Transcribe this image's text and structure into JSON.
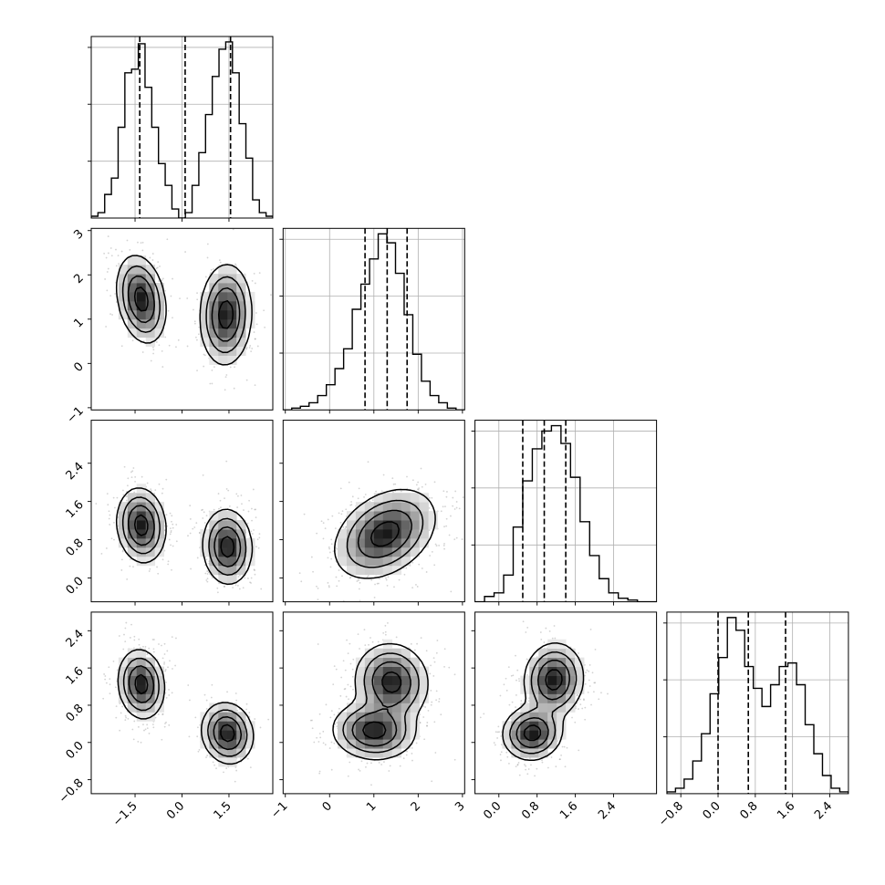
{
  "chart_data": {
    "type": "corner",
    "colors": {
      "line": "#000000",
      "grid": "#b0b0b0",
      "points": "#808080",
      "background": "#ffffff"
    },
    "params": [
      {
        "ticks": [
          -1.5,
          0.0,
          1.5
        ],
        "tick_labels": [
          "−1.5",
          "0.0",
          "1.5"
        ],
        "range": [
          -2.9,
          2.9
        ],
        "quantiles": [
          -1.35,
          0.1,
          1.55
        ],
        "label_rotation": -45
      },
      {
        "ticks": [
          -1,
          0,
          1,
          2,
          3
        ],
        "tick_labels": [
          "−1",
          "0",
          "1",
          "2",
          "3"
        ],
        "range": [
          -1.05,
          3.05
        ],
        "quantiles": [
          0.8,
          1.3,
          1.75
        ],
        "label_rotation": -45
      },
      {
        "ticks": [
          0.0,
          0.8,
          1.6,
          2.4
        ],
        "tick_labels": [
          "0.0",
          "0.8",
          "1.6",
          "2.4"
        ],
        "range": [
          -0.5,
          3.3
        ],
        "quantiles": [
          0.5,
          0.95,
          1.4
        ],
        "label_rotation": -45
      },
      {
        "ticks": [
          -0.8,
          0.0,
          0.8,
          1.6,
          2.4
        ],
        "tick_labels": [
          "−0.8",
          "0.0",
          "0.8",
          "1.6",
          "2.4"
        ],
        "range": [
          -1.1,
          2.8
        ],
        "quantiles": [
          0.0,
          0.65,
          1.45
        ],
        "label_rotation": -45
      }
    ],
    "histograms": [
      {
        "param": 0,
        "bins": [
          -2.9,
          2.9
        ],
        "counts": [
          0.01,
          0.03,
          0.13,
          0.22,
          0.5,
          0.8,
          0.82,
          0.96,
          0.72,
          0.5,
          0.3,
          0.18,
          0.05,
          0.0,
          0.03,
          0.18,
          0.36,
          0.57,
          0.78,
          0.93,
          0.97,
          0.8,
          0.52,
          0.33,
          0.1,
          0.03,
          0.01
        ]
      },
      {
        "param": 1,
        "bins": [
          -1.05,
          3.05
        ],
        "counts": [
          0.0,
          0.01,
          0.02,
          0.04,
          0.08,
          0.14,
          0.23,
          0.34,
          0.56,
          0.7,
          0.84,
          0.98,
          0.93,
          0.76,
          0.53,
          0.31,
          0.16,
          0.08,
          0.04,
          0.01,
          0.0
        ]
      },
      {
        "param": 2,
        "bins": [
          -0.5,
          3.3
        ],
        "counts": [
          0.0,
          0.03,
          0.05,
          0.15,
          0.42,
          0.68,
          0.86,
          0.96,
          0.99,
          0.89,
          0.7,
          0.45,
          0.26,
          0.13,
          0.05,
          0.02,
          0.01,
          0.0,
          0.0
        ]
      },
      {
        "param": 3,
        "bins": [
          -1.1,
          2.8
        ],
        "counts": [
          0.01,
          0.03,
          0.08,
          0.18,
          0.33,
          0.55,
          0.75,
          0.97,
          0.9,
          0.7,
          0.58,
          0.48,
          0.6,
          0.7,
          0.72,
          0.6,
          0.38,
          0.22,
          0.1,
          0.03,
          0.01
        ]
      }
    ],
    "pairs": [
      {
        "x_param": 0,
        "y_param": 1,
        "modes": [
          {
            "x": -1.3,
            "y": 1.45,
            "sx": 0.38,
            "sy": 0.48,
            "rho": -0.25,
            "weight": 0.5
          },
          {
            "x": 1.4,
            "y": 1.1,
            "sx": 0.4,
            "sy": 0.55,
            "rho": 0.05,
            "weight": 0.5
          }
        ]
      },
      {
        "x_param": 0,
        "y_param": 2,
        "modes": [
          {
            "x": -1.3,
            "y": 1.1,
            "sx": 0.38,
            "sy": 0.38,
            "rho": -0.1,
            "weight": 0.5
          },
          {
            "x": 1.45,
            "y": 0.65,
            "sx": 0.38,
            "sy": 0.38,
            "rho": -0.05,
            "weight": 0.5
          }
        ]
      },
      {
        "x_param": 0,
        "y_param": 3,
        "modes": [
          {
            "x": -1.3,
            "y": 1.25,
            "sx": 0.36,
            "sy": 0.36,
            "rho": -0.1,
            "weight": 0.5
          },
          {
            "x": 1.45,
            "y": 0.2,
            "sx": 0.4,
            "sy": 0.32,
            "rho": -0.1,
            "weight": 0.5
          }
        ]
      },
      {
        "x_param": 1,
        "y_param": 2,
        "modes": [
          {
            "x": 1.25,
            "y": 0.92,
            "sx": 0.55,
            "sy": 0.45,
            "rho": 0.35,
            "weight": 1.0
          }
        ]
      },
      {
        "x_param": 1,
        "y_param": 3,
        "modes": [
          {
            "x": 1.0,
            "y": 0.25,
            "sx": 0.45,
            "sy": 0.3,
            "rho": -0.05,
            "weight": 0.5
          },
          {
            "x": 1.4,
            "y": 1.3,
            "sx": 0.4,
            "sy": 0.4,
            "rho": -0.05,
            "weight": 0.5
          }
        ]
      },
      {
        "x_param": 2,
        "y_param": 3,
        "modes": [
          {
            "x": 0.7,
            "y": 0.2,
            "sx": 0.3,
            "sy": 0.28,
            "rho": 0.05,
            "weight": 0.5
          },
          {
            "x": 1.15,
            "y": 1.35,
            "sx": 0.3,
            "sy": 0.38,
            "rho": 0.05,
            "weight": 0.5
          }
        ]
      }
    ],
    "contour_levels": [
      0.12,
      0.3,
      0.55,
      0.85
    ],
    "grid": true,
    "scatter_points_per_panel": 650
  }
}
